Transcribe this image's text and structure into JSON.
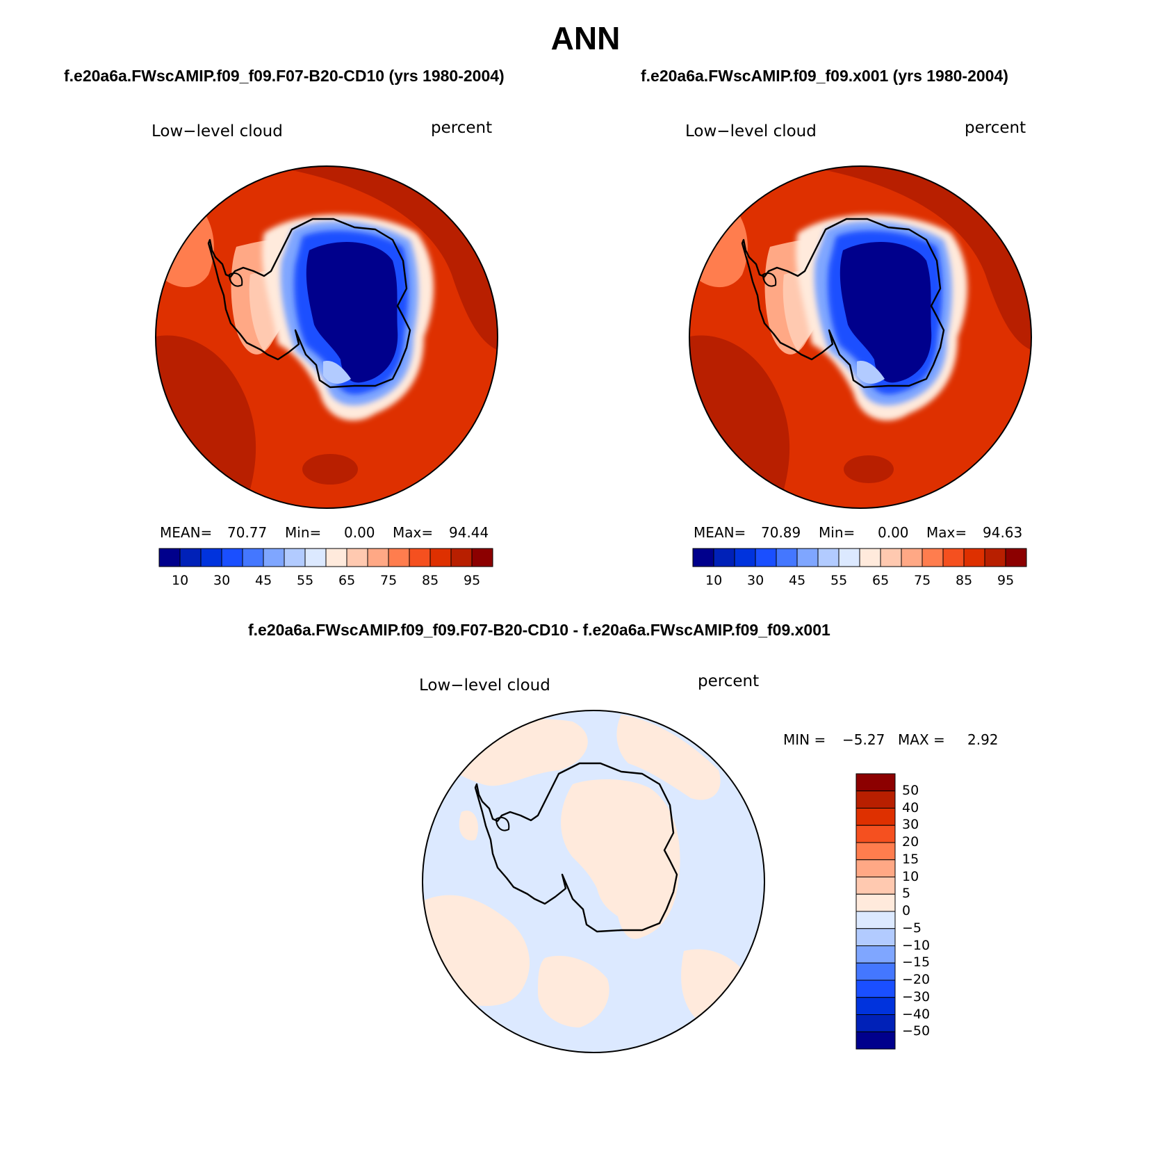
{
  "page": {
    "title": "ANN"
  },
  "panels": [
    {
      "id": "case1",
      "run_title": "f.e20a6a.FWscAMIP.f09_f09.F07-B20-CD10 (yrs 1980-2004)",
      "field": "Low−level cloud",
      "units": "percent",
      "stats": {
        "mean_label": "MEAN=",
        "mean": "70.77",
        "min_label": "Min=",
        "min": "0.00",
        "max_label": "Max=",
        "max": "94.44"
      }
    },
    {
      "id": "case2",
      "run_title": "f.e20a6a.FWscAMIP.f09_f09.x001 (yrs 1980-2004)",
      "field": "Low−level cloud",
      "units": "percent",
      "stats": {
        "mean_label": "MEAN=",
        "mean": "70.89",
        "min_label": "Min=",
        "min": "0.00",
        "max_label": "Max=",
        "max": "94.63"
      }
    },
    {
      "id": "diff",
      "run_title": "f.e20a6a.FWscAMIP.f09_f09.F07-B20-CD10 - f.e20a6a.FWscAMIP.f09_f09.x001",
      "field": "Low−level cloud",
      "units": "percent",
      "stats": {
        "min_label": "MIN =",
        "min": "−5.27",
        "max_label": "MAX =",
        "max": "2.92"
      }
    }
  ],
  "colorbars": {
    "absolute": {
      "colors": [
        "#00008c",
        "#0021b8",
        "#0033dd",
        "#1a4fff",
        "#4477ff",
        "#7fa6ff",
        "#b2cbff",
        "#dce9ff",
        "#ffeadc",
        "#ffc9b0",
        "#ffa885",
        "#ff7d4e",
        "#f5501f",
        "#de3000",
        "#b81f00",
        "#8c0000"
      ],
      "labels": [
        "10",
        "30",
        "45",
        "55",
        "65",
        "75",
        "85",
        "95"
      ]
    },
    "difference": {
      "colors_top_to_bottom": [
        "#8c0000",
        "#b81f00",
        "#de3000",
        "#f5501f",
        "#ff7d4e",
        "#ffa885",
        "#ffc9b0",
        "#ffeadc",
        "#dce9ff",
        "#b2cbff",
        "#7fa6ff",
        "#4477ff",
        "#1a4fff",
        "#0033dd",
        "#0021b8",
        "#00008c"
      ],
      "labels_top_to_bottom": [
        "50",
        "40",
        "30",
        "20",
        "15",
        "10",
        "5",
        "0",
        "−5",
        "−10",
        "−15",
        "−20",
        "−30",
        "−40",
        "−50"
      ]
    }
  }
}
